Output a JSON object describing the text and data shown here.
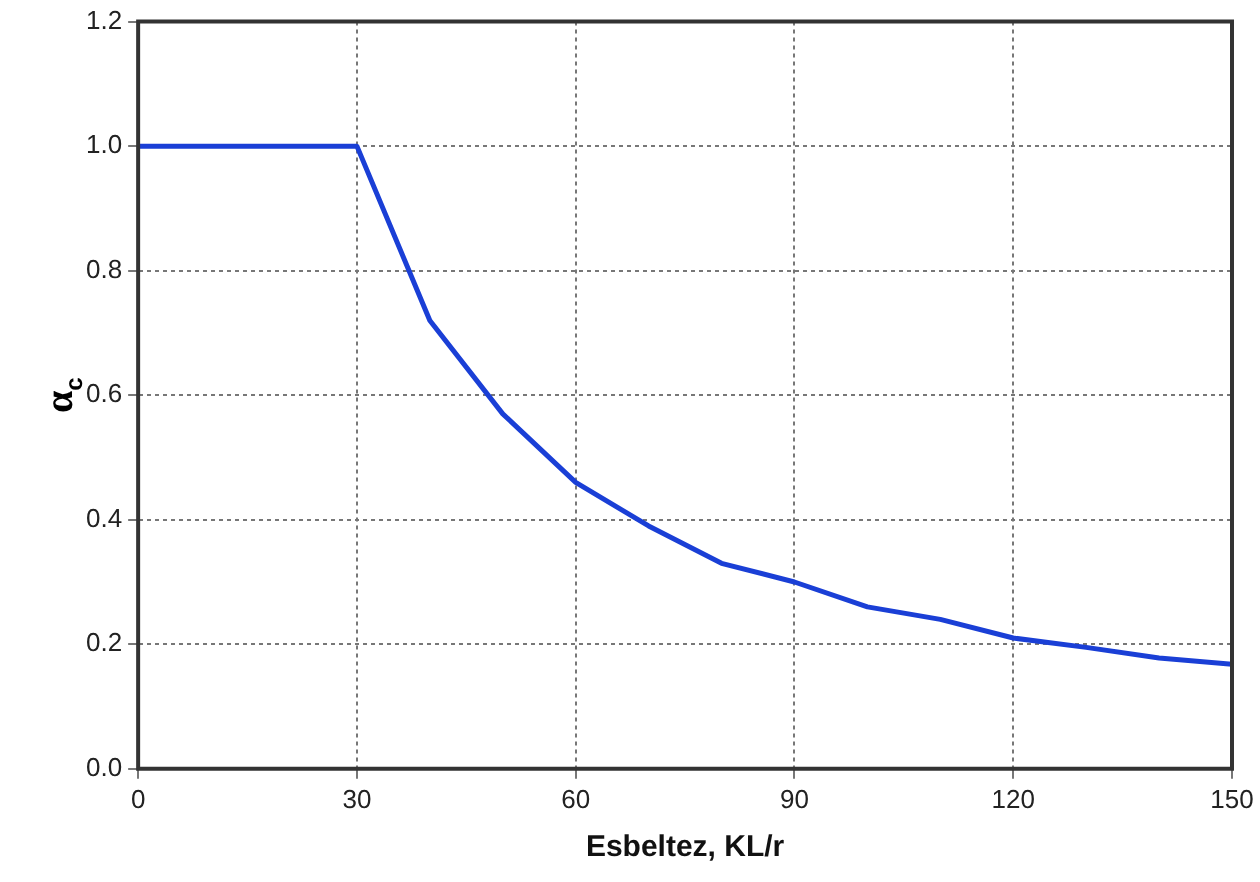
{
  "chart_data": {
    "type": "line",
    "xlabel": "Esbeltez, KL/r",
    "ylabel": "α$_{c}$",
    "x": [
      0,
      30,
      40,
      50,
      60,
      70,
      80,
      90,
      100,
      110,
      120,
      130,
      140,
      150
    ],
    "series": [
      {
        "color": "#1a3fd6",
        "values": [
          1.0,
          1.0,
          0.72,
          0.57,
          0.46,
          0.39,
          0.33,
          0.3,
          0.26,
          0.24,
          0.21,
          0.195,
          0.178,
          0.168
        ]
      }
    ],
    "xlim": [
      0,
      150
    ],
    "xticks": [
      0,
      30,
      60,
      90,
      120,
      150
    ],
    "ylim": [
      0,
      1.2
    ],
    "yticks": [
      {
        "value": 0,
        "label": "0.0"
      },
      {
        "value": 0.2,
        "label": "0.2"
      },
      {
        "value": 0.4,
        "label": "0.4"
      },
      {
        "value": 0.6,
        "label": "0.6"
      },
      {
        "value": 0.8,
        "label": "0.8"
      },
      {
        "value": 1,
        "label": "1.0"
      },
      {
        "value": 1.2,
        "label": "1.2"
      }
    ],
    "grid": true,
    "marker": "none",
    "line_style": "solid",
    "legend": false
  }
}
